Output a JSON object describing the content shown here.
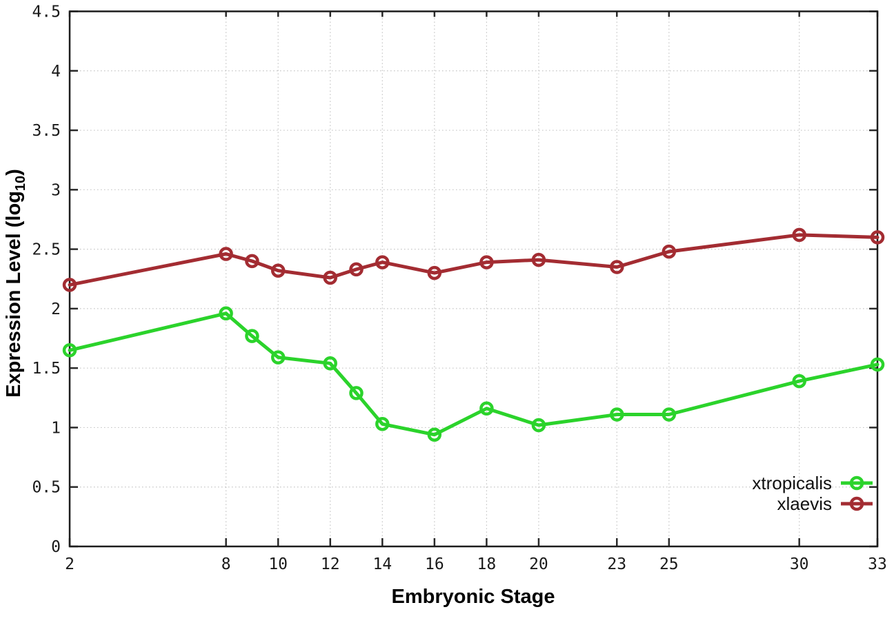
{
  "chart_data": {
    "type": "line",
    "title": "",
    "xlabel": "Embryonic Stage",
    "ylabel": "Expression Level (log10)",
    "ylabel_parts": {
      "main": "Expression Level (log",
      "sub": "10",
      "close": ")"
    },
    "x": [
      2,
      8,
      9,
      10,
      12,
      13,
      14,
      16,
      18,
      20,
      23,
      25,
      30,
      33
    ],
    "xticks": [
      2,
      8,
      10,
      12,
      14,
      16,
      18,
      20,
      23,
      25,
      30,
      33
    ],
    "yticks": [
      0,
      0.5,
      1,
      1.5,
      2,
      2.5,
      3,
      3.5,
      4,
      4.5
    ],
    "xlim": [
      2,
      33
    ],
    "ylim": [
      0,
      4.5
    ],
    "grid": true,
    "legend_position": "inside-bottom-right",
    "series": [
      {
        "name": "xtropicalis",
        "color": "#2bd32b",
        "marker": "open-circle",
        "values": [
          1.65,
          1.96,
          1.77,
          1.59,
          1.54,
          1.29,
          1.03,
          0.94,
          1.16,
          1.02,
          1.11,
          1.11,
          1.39,
          1.53
        ]
      },
      {
        "name": "xlaevis",
        "color": "#a32c32",
        "marker": "open-circle",
        "values": [
          2.2,
          2.46,
          2.4,
          2.32,
          2.26,
          2.33,
          2.39,
          2.3,
          2.39,
          2.41,
          2.35,
          2.48,
          2.62,
          2.6
        ]
      }
    ],
    "style": {
      "grid_color": "#c4c4c4",
      "border_color": "#1c1c1c",
      "tick_label_color": "#1a1a1a",
      "background": "#ffffff"
    }
  }
}
